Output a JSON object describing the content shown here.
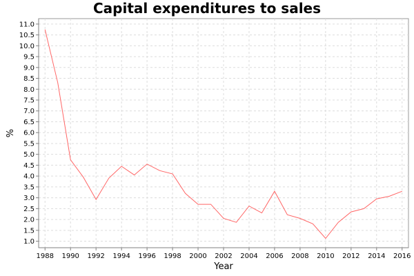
{
  "chart_data": {
    "type": "line",
    "title": "Capital expenditures to sales",
    "xlabel": "Year",
    "ylabel": "%",
    "xlim": [
      1987.5,
      2016.5
    ],
    "ylim": [
      0.7,
      11.25
    ],
    "x_ticks": [
      1988,
      1990,
      1992,
      1994,
      1996,
      1998,
      2000,
      2002,
      2004,
      2006,
      2008,
      2010,
      2012,
      2014,
      2016
    ],
    "y_ticks": [
      1.0,
      1.5,
      2.0,
      2.5,
      3.0,
      3.5,
      4.0,
      4.5,
      5.0,
      5.5,
      6.0,
      6.5,
      7.0,
      7.5,
      8.0,
      8.5,
      9.0,
      9.5,
      10.0,
      10.5,
      11.0
    ],
    "grid": true,
    "legend": "none",
    "series": [
      {
        "color": "#ff6666",
        "x": [
          1988,
          1989,
          1990,
          1991,
          1992,
          1993,
          1994,
          1995,
          1996,
          1997,
          1998,
          1999,
          2000,
          2001,
          2002,
          2003,
          2004,
          2005,
          2006,
          2007,
          2008,
          2009,
          2010,
          2011,
          2012,
          2013,
          2014,
          2015,
          2016
        ],
        "values": [
          10.75,
          8.3,
          4.75,
          3.95,
          2.92,
          3.9,
          4.45,
          4.05,
          4.55,
          4.25,
          4.1,
          3.2,
          2.7,
          2.7,
          2.05,
          1.87,
          2.62,
          2.3,
          3.3,
          2.22,
          2.05,
          1.8,
          1.13,
          1.87,
          2.35,
          2.5,
          2.95,
          3.07,
          3.3
        ]
      }
    ]
  }
}
